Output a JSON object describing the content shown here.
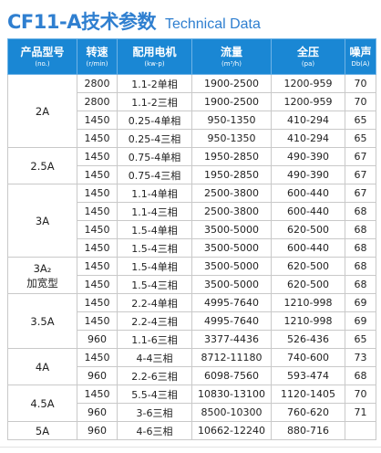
{
  "title": {
    "cn": "CF11-A技术参数",
    "en": "Technical Data"
  },
  "headers": [
    {
      "main": "产品型号",
      "sub": "(no.)"
    },
    {
      "main": "转速",
      "sub": "(r/min)"
    },
    {
      "main": "配用电机",
      "sub": "(kw-p)"
    },
    {
      "main": "流量",
      "sub": "(m³/h)"
    },
    {
      "main": "全压",
      "sub": "(pa)"
    },
    {
      "main": "噪声",
      "sub": "Db(A)"
    }
  ],
  "groups": [
    {
      "model": [
        "2A"
      ],
      "rows": [
        [
          "2800",
          "1.1-2单相",
          "1900-2500",
          "1200-959",
          "70"
        ],
        [
          "2800",
          "1.1-2三相",
          "1900-2500",
          "1200-959",
          "70"
        ],
        [
          "1450",
          "0.25-4单相",
          "950-1350",
          "410-294",
          "65"
        ],
        [
          "1450",
          "0.25-4三相",
          "950-1350",
          "410-294",
          "65"
        ]
      ]
    },
    {
      "model": [
        "2.5A"
      ],
      "rows": [
        [
          "1450",
          "0.75-4单相",
          "1950-2850",
          "490-390",
          "67"
        ],
        [
          "1450",
          "0.75-4三相",
          "1950-2850",
          "490-390",
          "67"
        ]
      ]
    },
    {
      "model": [
        "3A"
      ],
      "rows": [
        [
          "1450",
          "1.1-4单相",
          "2500-3800",
          "600-440",
          "67"
        ],
        [
          "1450",
          "1.1-4三相",
          "2500-3800",
          "600-440",
          "68"
        ],
        [
          "1450",
          "1.5-4单相",
          "3500-5000",
          "620-500",
          "68"
        ],
        [
          "1450",
          "1.5-4三相",
          "3500-5000",
          "600-440",
          "68"
        ]
      ]
    },
    {
      "model": [
        "3A₂",
        "加宽型"
      ],
      "rows": [
        [
          "1450",
          "1.5-4单相",
          "3500-5000",
          "620-500",
          "68"
        ],
        [
          "1450",
          "1.5-4三相",
          "3500-5000",
          "620-500",
          "68"
        ]
      ]
    },
    {
      "model": [
        "3.5A"
      ],
      "rows": [
        [
          "1450",
          "2.2-4单相",
          "4995-7640",
          "1210-998",
          "69"
        ],
        [
          "1450",
          "2.2-4三相",
          "4995-7640",
          "1210-998",
          "69"
        ],
        [
          "960",
          "1.1-6三相",
          "3377-4436",
          "526-436",
          "65"
        ]
      ]
    },
    {
      "model": [
        "4A"
      ],
      "rows": [
        [
          "1450",
          "4-4三相",
          "8712-11180",
          "740-600",
          "73"
        ],
        [
          "960",
          "2.2-6三相",
          "6098-7560",
          "593-474",
          "68"
        ]
      ]
    },
    {
      "model": [
        "4.5A"
      ],
      "rows": [
        [
          "1450",
          "5.5-4三相",
          "10830-13100",
          "1120-1405",
          "70"
        ],
        [
          "960",
          "3-6三相",
          "8500-10300",
          "760-620",
          "71"
        ]
      ]
    },
    {
      "model": [
        "5A"
      ],
      "rows": [
        [
          "960",
          "4-6三相",
          "10662-12240",
          "880-716",
          ""
        ]
      ]
    }
  ]
}
